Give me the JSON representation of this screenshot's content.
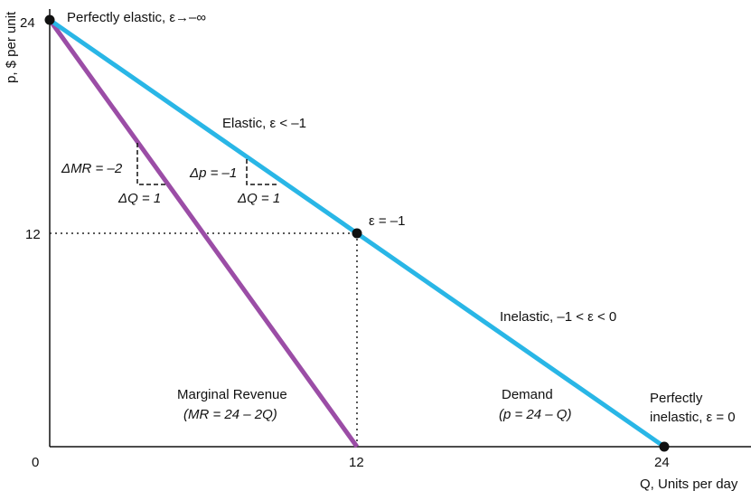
{
  "chart_data": {
    "type": "line",
    "title": "",
    "xlabel": "Q, Units per day",
    "ylabel": "p, $ per unit",
    "xlim": [
      0,
      24
    ],
    "ylim": [
      0,
      24
    ],
    "xticks": [
      "0",
      "12",
      "24"
    ],
    "yticks": [
      "24",
      "12"
    ],
    "series": [
      {
        "name": "Demand",
        "color": "#29b6e6",
        "points": [
          [
            0,
            24
          ],
          [
            24,
            0
          ]
        ]
      },
      {
        "name": "Marginal Revenue",
        "color": "#9b4da6",
        "points": [
          [
            0,
            24
          ],
          [
            12,
            0
          ]
        ]
      }
    ],
    "points": [
      {
        "x": 0,
        "y": 24,
        "label": "Perfectly elastic, ε→–∞"
      },
      {
        "x": 12,
        "y": 12,
        "label": "ε = –1"
      },
      {
        "x": 24,
        "y": 0,
        "label_line1": "Perfectly",
        "label_line2": "inelastic, ε = 0"
      }
    ],
    "annotations": {
      "elastic": "Elastic, ε < –1",
      "inelastic": "Inelastic, –1 < ε < 0",
      "mr_line1": "Marginal Revenue",
      "mr_line2": "(MR = 24 – 2Q)",
      "demand_line1": "Demand",
      "demand_line2": "(p = 24 – Q)",
      "delta_mr": "ΔMR = –2",
      "delta_q_mr": "ΔQ = 1",
      "delta_p": "Δp = –1",
      "delta_q_demand": "ΔQ = 1"
    },
    "reference_lines": {
      "x": 12,
      "y": 12,
      "style": "dotted"
    },
    "grid": false,
    "legend": "none"
  }
}
